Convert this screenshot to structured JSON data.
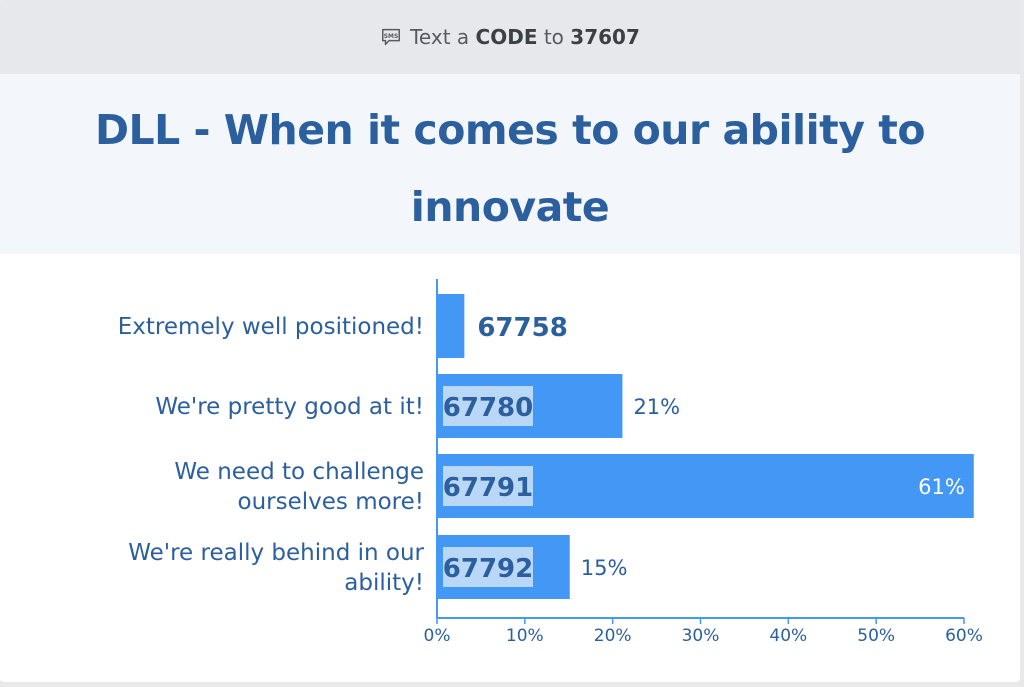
{
  "header": {
    "text_before": "Text a",
    "code_word": "CODE",
    "text_mid": "to",
    "number": "37607",
    "icon": "sms-icon"
  },
  "poll": {
    "title": "DLL - When it comes to our ability to innovate"
  },
  "colors": {
    "bar": "#4397f5",
    "axis": "#4397f5",
    "label_text": "#2c5f9e",
    "code_bg": "#b9d7f7",
    "title": "#2c5f9e"
  },
  "chart_data": {
    "type": "bar",
    "orientation": "horizontal",
    "categories": [
      "Extremely well positioned!",
      "We're pretty good at it!",
      "We need to challenge ourselves more!",
      "We're really behind in our ability!"
    ],
    "category_lines": [
      [
        "Extremely well positioned!"
      ],
      [
        "We're pretty good at it!"
      ],
      [
        "We need to challenge",
        "ourselves more!"
      ],
      [
        "We're really behind in our",
        "ability!"
      ]
    ],
    "codes": [
      "67758",
      "67780",
      "67791",
      "67792"
    ],
    "values": [
      3,
      21,
      61,
      15
    ],
    "value_labels": [
      "",
      "21%",
      "61%",
      "15%"
    ],
    "x_ticks": [
      "0%",
      "10%",
      "20%",
      "30%",
      "40%",
      "50%",
      "60%"
    ],
    "xlim": [
      0,
      60
    ],
    "grid": false,
    "legend": "none"
  }
}
